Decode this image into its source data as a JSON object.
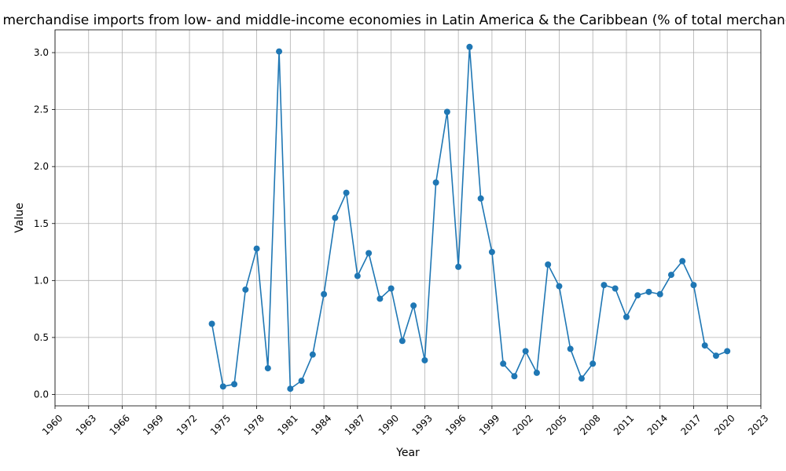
{
  "chart_data": {
    "type": "line",
    "title": "Share of merchandise imports from low- and middle-income economies in Latin America & the Caribbean (% of total merchandise imports)",
    "xlabel": "Year",
    "ylabel": "Value",
    "xlim": [
      1960,
      2023
    ],
    "ylim": [
      -0.1,
      3.2
    ],
    "x_ticks": [
      1960,
      1963,
      1966,
      1969,
      1972,
      1975,
      1978,
      1981,
      1984,
      1987,
      1990,
      1993,
      1996,
      1999,
      2002,
      2005,
      2008,
      2011,
      2014,
      2017,
      2020,
      2023
    ],
    "y_ticks": [
      0.0,
      0.5,
      1.0,
      1.5,
      2.0,
      2.5,
      3.0
    ],
    "y_tick_labels": [
      "0.0",
      "0.5",
      "1.0",
      "1.5",
      "2.0",
      "2.5",
      "3.0"
    ],
    "grid": true,
    "color": "#1f77b4",
    "x": [
      1974,
      1975,
      1976,
      1977,
      1978,
      1979,
      1980,
      1981,
      1982,
      1983,
      1984,
      1985,
      1986,
      1987,
      1988,
      1989,
      1990,
      1991,
      1992,
      1993,
      1994,
      1995,
      1996,
      1997,
      1998,
      1999,
      2000,
      2001,
      2002,
      2003,
      2004,
      2005,
      2006,
      2007,
      2008,
      2009,
      2010,
      2011,
      2012,
      2013,
      2014,
      2015,
      2016,
      2017,
      2018,
      2019,
      2020
    ],
    "y": [
      0.62,
      0.07,
      0.09,
      0.92,
      1.28,
      0.23,
      3.01,
      0.05,
      0.12,
      0.35,
      0.88,
      1.55,
      1.77,
      1.04,
      1.24,
      0.84,
      0.93,
      0.47,
      0.78,
      0.3,
      1.86,
      2.48,
      1.12,
      3.05,
      1.72,
      1.25,
      0.27,
      0.16,
      0.38,
      0.19,
      1.14,
      0.95,
      0.4,
      0.14,
      0.27,
      0.96,
      0.93,
      0.68,
      0.87,
      0.9,
      0.88,
      1.05,
      1.17,
      0.96,
      0.43,
      0.34,
      0.38
    ]
  }
}
